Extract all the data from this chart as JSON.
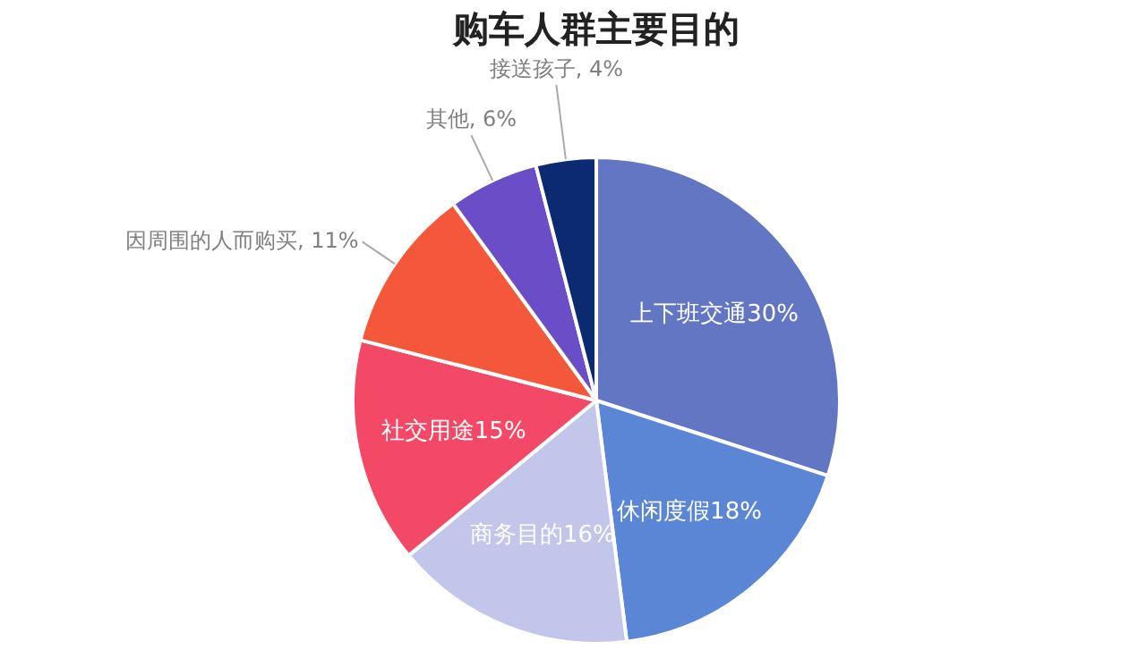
{
  "chart_data": {
    "type": "pie",
    "title": "购车人群主要目的",
    "categories": [
      "上下班交通",
      "休闲度假",
      "商务目的",
      "社交用途",
      "因周围的人而购买",
      "其他",
      "接送孩子"
    ],
    "values": [
      30,
      18,
      16,
      15,
      11,
      6,
      4
    ],
    "value_labels": [
      "30%",
      "18%",
      "16%",
      "15%",
      "11%",
      "6%",
      "4%"
    ],
    "colors": [
      "#6276c4",
      "#5b86d6",
      "#c1c6ea",
      "#f34866",
      "#f5573a",
      "#6a4ec7",
      "#0b2a72"
    ],
    "legend": false
  }
}
